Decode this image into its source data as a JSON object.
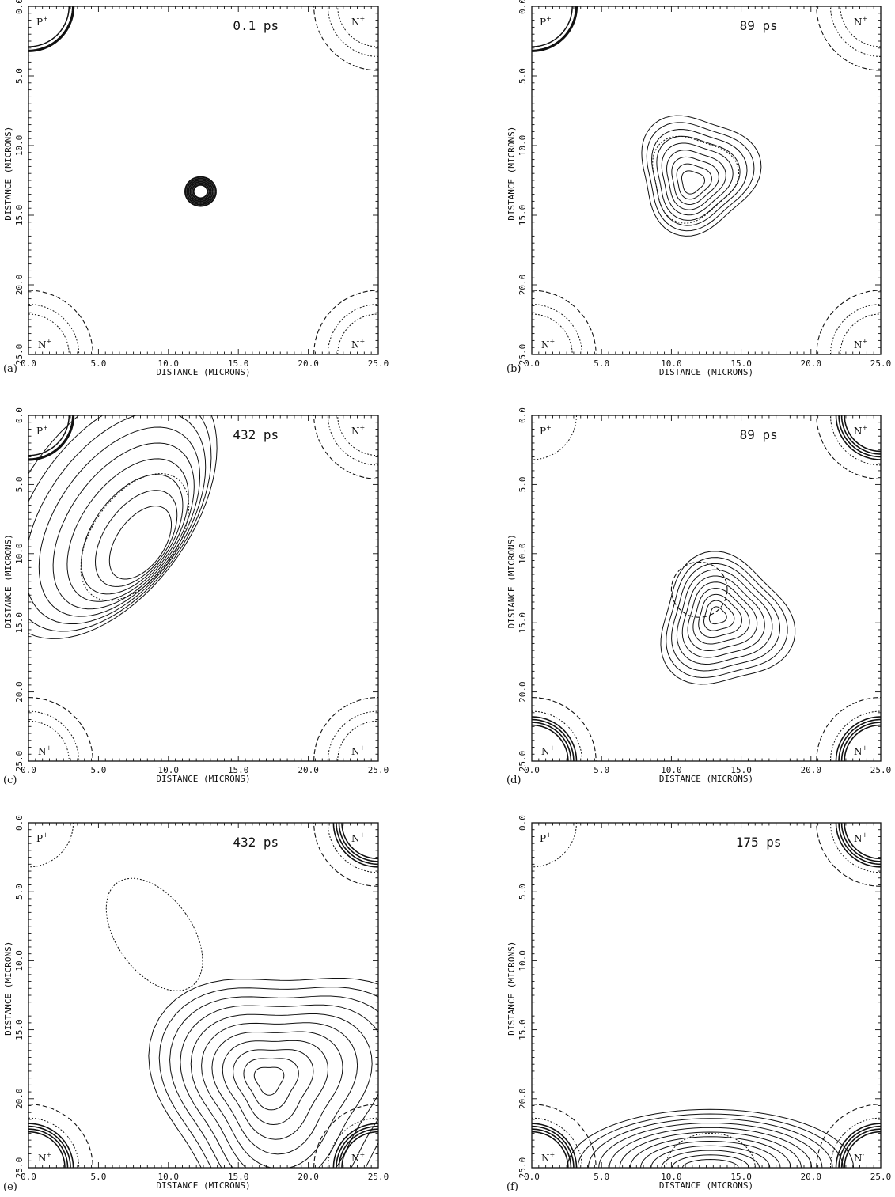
{
  "chart_data": [
    {
      "type": "contour",
      "panel_label": "(a)",
      "time_label": "0.1 ps",
      "xlabel": "DISTANCE (MICRONS)",
      "ylabel": "DISTANCE (MICRONS)",
      "xlim": [
        0,
        25
      ],
      "ylim": [
        0,
        25
      ],
      "x_ticks": [
        "0.0",
        "5.0",
        "10.0",
        "15.0",
        "20.0",
        "25.0"
      ],
      "y_ticks": [
        "0.0",
        "5.0",
        "10.0",
        "15.0",
        "20.0",
        "25.0"
      ],
      "corner_labels": [
        {
          "pos": "top-left",
          "text": "P",
          "sup": "+"
        },
        {
          "pos": "top-right",
          "text": "N",
          "sup": "+"
        },
        {
          "pos": "bottom-left",
          "text": "N",
          "sup": "+"
        },
        {
          "pos": "bottom-right",
          "text": "N",
          "sup": "+"
        }
      ]
    },
    {
      "type": "contour",
      "panel_label": "(b)",
      "time_label": "89 ps",
      "xlabel": "DISTANCE (MICRONS)",
      "ylabel": "DISTANCE (MICRONS)",
      "xlim": [
        0,
        25
      ],
      "ylim": [
        0,
        25
      ],
      "x_ticks": [
        "0.0",
        "5.0",
        "10.0",
        "15.0",
        "20.0",
        "25.0"
      ],
      "y_ticks": [
        "0.0",
        "5.0",
        "10.0",
        "15.0",
        "20.0",
        "25.0"
      ],
      "corner_labels": [
        {
          "pos": "top-left",
          "text": "P",
          "sup": "+"
        },
        {
          "pos": "top-right",
          "text": "N",
          "sup": "+"
        },
        {
          "pos": "bottom-left",
          "text": "N",
          "sup": "+"
        },
        {
          "pos": "bottom-right",
          "text": "N",
          "sup": "+"
        }
      ]
    },
    {
      "type": "contour",
      "panel_label": "(c)",
      "time_label": "432 ps",
      "xlabel": "DISTANCE (MICRONS)",
      "ylabel": "DISTANCE (MICRONS)",
      "xlim": [
        0,
        25
      ],
      "ylim": [
        0,
        25
      ],
      "x_ticks": [
        "0.0",
        "5.0",
        "10.0",
        "15.0",
        "20.0",
        "25.0"
      ],
      "y_ticks": [
        "0.0",
        "5.0",
        "10.0",
        "15.0",
        "20.0",
        "25.0"
      ],
      "corner_labels": [
        {
          "pos": "top-left",
          "text": "P",
          "sup": "+"
        },
        {
          "pos": "top-right",
          "text": "N",
          "sup": "+"
        },
        {
          "pos": "bottom-left",
          "text": "N",
          "sup": "+"
        },
        {
          "pos": "bottom-right",
          "text": "N",
          "sup": "+"
        }
      ]
    },
    {
      "type": "contour",
      "panel_label": "(d)",
      "time_label": "89 ps",
      "xlabel": "DISTANCE (MICRONS)",
      "ylabel": "DISTANCE (MICRONS)",
      "xlim": [
        0,
        25
      ],
      "ylim": [
        0,
        25
      ],
      "x_ticks": [
        "0.0",
        "5.0",
        "10.0",
        "15.0",
        "20.0",
        "25.0"
      ],
      "y_ticks": [
        "0.0",
        "5.0",
        "10.0",
        "15.0",
        "20.0",
        "25.0"
      ],
      "corner_labels": [
        {
          "pos": "top-left",
          "text": "P",
          "sup": "+"
        },
        {
          "pos": "top-right",
          "text": "N",
          "sup": "+"
        },
        {
          "pos": "bottom-left",
          "text": "N",
          "sup": "+"
        },
        {
          "pos": "bottom-right",
          "text": "N",
          "sup": "+"
        }
      ]
    },
    {
      "type": "contour",
      "panel_label": "(e)",
      "time_label": "432 ps",
      "xlabel": "DISTANCE (MICRONS)",
      "ylabel": "DISTANCE (MICRONS)",
      "xlim": [
        0,
        25
      ],
      "ylim": [
        0,
        25
      ],
      "x_ticks": [
        "0.0",
        "5.0",
        "10.0",
        "15.0",
        "20.0",
        "25.0"
      ],
      "y_ticks": [
        "0.0",
        "5.0",
        "10.0",
        "15.0",
        "20.0",
        "25.0"
      ],
      "corner_labels": [
        {
          "pos": "top-left",
          "text": "P",
          "sup": "+"
        },
        {
          "pos": "top-right",
          "text": "N",
          "sup": "+"
        },
        {
          "pos": "bottom-left",
          "text": "N",
          "sup": "+"
        },
        {
          "pos": "bottom-right",
          "text": "N",
          "sup": "+"
        }
      ]
    },
    {
      "type": "contour",
      "panel_label": "(f)",
      "time_label": "175 ps",
      "xlabel": "DISTANCE (MICRONS)",
      "ylabel": "DISTANCE (MICRONS)",
      "xlim": [
        0,
        25
      ],
      "ylim": [
        0,
        25
      ],
      "x_ticks": [
        "0.0",
        "5.0",
        "10.0",
        "15.0",
        "20.0",
        "25.0"
      ],
      "y_ticks": [
        "0.0",
        "5.0",
        "10.0",
        "15.0",
        "20.0",
        "25.0"
      ],
      "corner_labels": [
        {
          "pos": "top-left",
          "text": "P",
          "sup": "+"
        },
        {
          "pos": "top-right",
          "text": "N",
          "sup": "+"
        },
        {
          "pos": "bottom-left",
          "text": "N",
          "sup": "+"
        },
        {
          "pos": "bottom-right",
          "text": "N",
          "sup": "-"
        }
      ]
    }
  ]
}
